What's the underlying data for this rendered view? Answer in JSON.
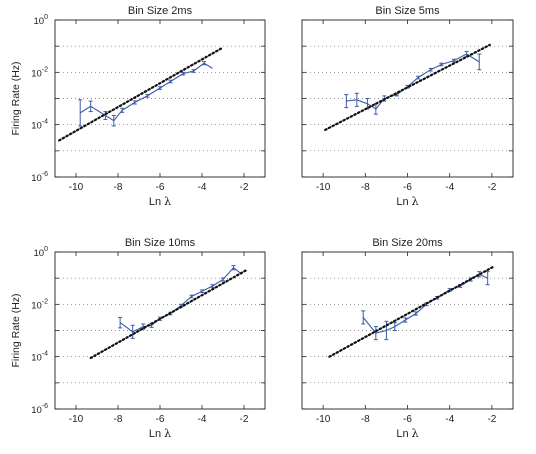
{
  "figure": {
    "ylabel": "Firing Rate (Hz)",
    "xlabel_text": "Ln ",
    "xlabel_symbol": "λ"
  },
  "chart_data": [
    {
      "type": "line",
      "title": "Bin Size 2ms",
      "xlim": [
        -11,
        -1
      ],
      "ylim_log10": [
        -6,
        0
      ],
      "yscale": "log",
      "grid": "horizontal dotted",
      "x_ticks": [
        "-10",
        "-8",
        "-6",
        "-4",
        "-2"
      ],
      "y_ticks": [
        {
          "base": "10",
          "exp": "-6"
        },
        {
          "base": "10",
          "exp": "-4"
        },
        {
          "base": "10",
          "exp": "-2"
        },
        {
          "base": "10",
          "exp": "0"
        }
      ],
      "series": [
        {
          "style": "solid blue with error bars",
          "color": "#3a5ba8",
          "points": [
            {
              "x": -9.8,
              "log10_y": -3.55,
              "err": 0.5
            },
            {
              "x": -9.3,
              "log10_y": -3.3,
              "err": 0.2
            },
            {
              "x": -8.6,
              "log10_y": -3.65,
              "err": 0.15
            },
            {
              "x": -8.2,
              "log10_y": -3.85,
              "err": 0.2
            },
            {
              "x": -7.8,
              "log10_y": -3.45,
              "err": 0.08
            },
            {
              "x": -7.2,
              "log10_y": -3.15,
              "err": 0.06
            },
            {
              "x": -6.6,
              "log10_y": -2.9,
              "err": 0.05
            },
            {
              "x": -6.0,
              "log10_y": -2.6,
              "err": 0.05
            },
            {
              "x": -5.5,
              "log10_y": -2.35,
              "err": 0.05
            },
            {
              "x": -4.9,
              "log10_y": -2.05,
              "err": 0.05
            },
            {
              "x": -4.4,
              "log10_y": -1.95,
              "err": 0.05
            },
            {
              "x": -3.9,
              "log10_y": -1.65,
              "err": 0.06
            },
            {
              "x": -3.5,
              "log10_y": -1.85,
              "err": 0.0
            }
          ]
        },
        {
          "style": "dotted black fit line",
          "color": "#111111",
          "points": [
            {
              "x": -10.8,
              "log10_y": -4.6
            },
            {
              "x": -3.0,
              "log10_y": -1.05
            }
          ]
        }
      ]
    },
    {
      "type": "line",
      "title": "Bin Size 5ms",
      "xlim": [
        -11,
        -1
      ],
      "ylim_log10": [
        -6,
        0
      ],
      "yscale": "log",
      "grid": "horizontal dotted",
      "x_ticks": [
        "-10",
        "-8",
        "-6",
        "-4",
        "-2"
      ],
      "series": [
        {
          "style": "solid blue with error bars",
          "color": "#3a5ba8",
          "points": [
            {
              "x": -8.9,
              "log10_y": -3.1,
              "err": 0.25
            },
            {
              "x": -8.4,
              "log10_y": -3.05,
              "err": 0.25
            },
            {
              "x": -7.9,
              "log10_y": -3.2,
              "err": 0.2
            },
            {
              "x": -7.5,
              "log10_y": -3.4,
              "err": 0.2
            },
            {
              "x": -7.1,
              "log10_y": -3.0,
              "err": 0.1
            },
            {
              "x": -6.5,
              "log10_y": -2.85,
              "err": 0.05
            },
            {
              "x": -6.0,
              "log10_y": -2.55,
              "err": 0.05
            },
            {
              "x": -5.5,
              "log10_y": -2.2,
              "err": 0.05
            },
            {
              "x": -4.9,
              "log10_y": -1.9,
              "err": 0.05
            },
            {
              "x": -4.4,
              "log10_y": -1.7,
              "err": 0.05
            },
            {
              "x": -3.8,
              "log10_y": -1.55,
              "err": 0.05
            },
            {
              "x": -3.2,
              "log10_y": -1.3,
              "err": 0.1
            },
            {
              "x": -2.6,
              "log10_y": -1.6,
              "err": 0.3
            }
          ]
        },
        {
          "style": "dotted black fit line",
          "color": "#111111",
          "points": [
            {
              "x": -9.9,
              "log10_y": -4.2
            },
            {
              "x": -2.1,
              "log10_y": -0.95
            }
          ]
        }
      ]
    },
    {
      "type": "line",
      "title": "Bin Size 10ms",
      "xlim": [
        -11,
        -1
      ],
      "ylim_log10": [
        -6,
        0
      ],
      "yscale": "log",
      "grid": "horizontal dotted",
      "x_ticks": [
        "-10",
        "-8",
        "-6",
        "-4",
        "-2"
      ],
      "y_ticks": [
        {
          "base": "10",
          "exp": "-6"
        },
        {
          "base": "10",
          "exp": "-4"
        },
        {
          "base": "10",
          "exp": "-2"
        },
        {
          "base": "10",
          "exp": "0"
        }
      ],
      "series": [
        {
          "style": "solid blue with error bars",
          "color": "#3a5ba8",
          "points": [
            {
              "x": -7.9,
              "log10_y": -2.7,
              "err": 0.2
            },
            {
              "x": -7.3,
              "log10_y": -3.05,
              "err": 0.25
            },
            {
              "x": -6.8,
              "log10_y": -2.85,
              "err": 0.1
            },
            {
              "x": -6.4,
              "log10_y": -2.8,
              "err": 0.08
            },
            {
              "x": -6.0,
              "log10_y": -2.55,
              "err": 0.06
            },
            {
              "x": -5.5,
              "log10_y": -2.35,
              "err": 0.05
            },
            {
              "x": -5.0,
              "log10_y": -2.05,
              "err": 0.05
            },
            {
              "x": -4.5,
              "log10_y": -1.7,
              "err": 0.05
            },
            {
              "x": -4.0,
              "log10_y": -1.5,
              "err": 0.05
            },
            {
              "x": -3.5,
              "log10_y": -1.3,
              "err": 0.05
            },
            {
              "x": -3.0,
              "log10_y": -1.05,
              "err": 0.06
            },
            {
              "x": -2.5,
              "log10_y": -0.6,
              "err": 0.08
            },
            {
              "x": -2.1,
              "log10_y": -0.85,
              "err": 0.0
            }
          ]
        },
        {
          "style": "dotted black fit line",
          "color": "#111111",
          "points": [
            {
              "x": -9.3,
              "log10_y": -4.05
            },
            {
              "x": -1.9,
              "log10_y": -0.7
            }
          ]
        }
      ]
    },
    {
      "type": "line",
      "title": "Bin Size 20ms",
      "xlim": [
        -11,
        -1
      ],
      "ylim_log10": [
        -6,
        0
      ],
      "yscale": "log",
      "grid": "horizontal dotted",
      "x_ticks": [
        "-10",
        "-8",
        "-6",
        "-4",
        "-2"
      ],
      "series": [
        {
          "style": "solid blue with error bars",
          "color": "#3a5ba8",
          "points": [
            {
              "x": -8.1,
              "log10_y": -2.5,
              "err": 0.25
            },
            {
              "x": -7.5,
              "log10_y": -3.1,
              "err": 0.25
            },
            {
              "x": -7.0,
              "log10_y": -3.0,
              "err": 0.35
            },
            {
              "x": -6.6,
              "log10_y": -2.85,
              "err": 0.15
            },
            {
              "x": -6.1,
              "log10_y": -2.6,
              "err": 0.08
            },
            {
              "x": -5.6,
              "log10_y": -2.35,
              "err": 0.06
            },
            {
              "x": -5.1,
              "log10_y": -2.0,
              "err": 0.05
            },
            {
              "x": -4.6,
              "log10_y": -1.75,
              "err": 0.05
            },
            {
              "x": -4.0,
              "log10_y": -1.45,
              "err": 0.05
            },
            {
              "x": -3.5,
              "log10_y": -1.3,
              "err": 0.05
            },
            {
              "x": -3.0,
              "log10_y": -1.05,
              "err": 0.06
            },
            {
              "x": -2.6,
              "log10_y": -0.85,
              "err": 0.1
            },
            {
              "x": -2.2,
              "log10_y": -1.0,
              "err": 0.25
            }
          ]
        },
        {
          "style": "dotted black fit line",
          "color": "#111111",
          "points": [
            {
              "x": -9.7,
              "log10_y": -4.0
            },
            {
              "x": -1.9,
              "log10_y": -0.55
            }
          ]
        }
      ]
    }
  ]
}
